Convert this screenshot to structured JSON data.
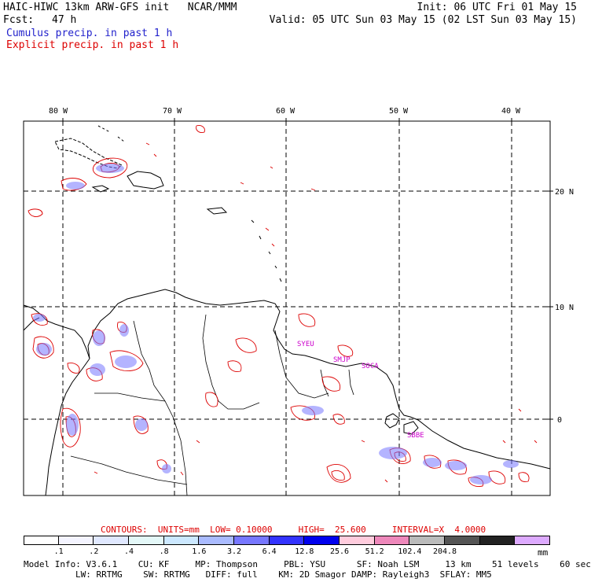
{
  "header": {
    "title_left": "HAIC-HIWC 13km ARW-GFS init   NCAR/MMM",
    "init": "Init: 06 UTC Fri 01 May 15",
    "fcst_label": "Fcst:",
    "fcst_value": "47 h",
    "valid": "Valid: 05 UTC Sun 03 May 15 (02 LST Sun 03 May 15)",
    "legend_cumulus": "Cumulus precip. in past 1 h",
    "legend_explicit": "Explicit precip. in past 1 h"
  },
  "colors": {
    "cumulus": "#2222cc",
    "explicit": "#dd0000",
    "station": "#cc00cc",
    "grid": "#000000"
  },
  "map": {
    "lon_labels": [
      "80 W",
      "70 W",
      "60 W",
      "50 W",
      "40 W"
    ],
    "lat_labels": [
      "20 N",
      "10 N",
      "0"
    ],
    "stations": [
      "SYEU",
      "SMJP",
      "SOCA",
      "SBBE"
    ]
  },
  "contours": {
    "line": "CONTOURS:  UNITS=mm  LOW= 0.10000     HIGH=  25.600     INTERVAL=X  4.0000"
  },
  "colorbar": {
    "levels": [
      ".1",
      ".2",
      ".4",
      ".8",
      "1.6",
      "3.2",
      "6.4",
      "12.8",
      "25.6",
      "51.2",
      "102.4",
      "204.8"
    ],
    "unit": "mm",
    "colors": [
      "#ffffff",
      "#f4f4ff",
      "#e0e8ff",
      "#e4f8f8",
      "#cce8ff",
      "#aabbff",
      "#7777ff",
      "#3333ff",
      "#0000ee",
      "#ffccdd",
      "#ee88bb",
      "#bbbbbb",
      "#555555",
      "#222222",
      "#ddaaff"
    ]
  },
  "model_info": {
    "line1": "Model Info: V3.6.1    CU: KF     MP: Thompson     PBL: YSU      SF: Noah LSM     13 km    51 levels    60 sec",
    "line2": "LW: RRTMG    SW: RRTMG   DIFF: full    KM: 2D Smagor DAMP: Rayleigh3  SFLAY: MM5"
  }
}
